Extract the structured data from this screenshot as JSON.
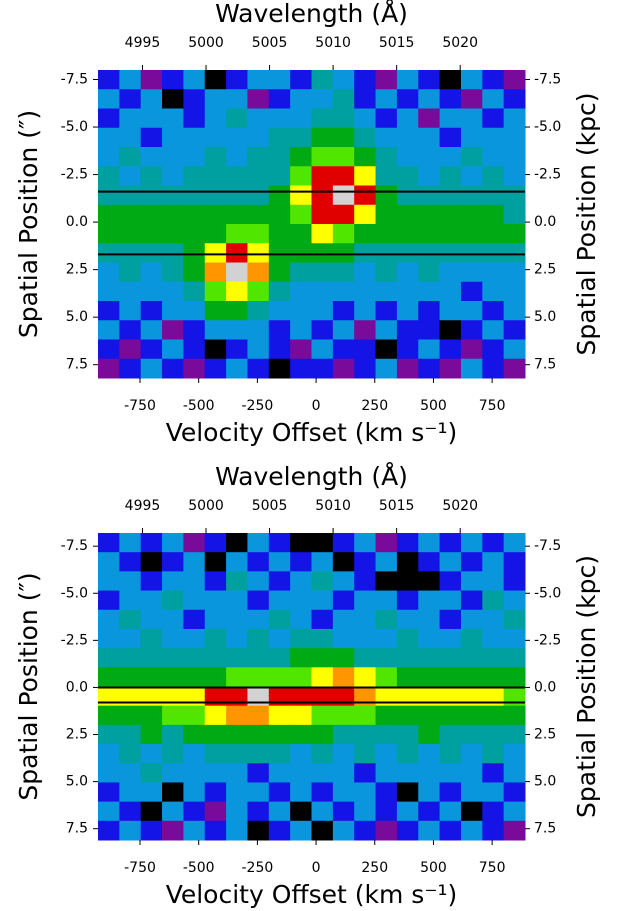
{
  "chart_data": [
    {
      "type": "heatmap",
      "top_axis_label": "Wavelength (Å)",
      "x_label": "Velocity Offset (km s⁻¹)",
      "y_label": "Spatial Position (″)",
      "y2_label": "Spatial Position (kpc)",
      "xlim": [
        -929,
        890
      ],
      "xticks": [
        -750,
        -500,
        -250,
        0,
        250,
        500,
        750
      ],
      "x2lim": [
        4991.5,
        5025.1
      ],
      "x2ticks": [
        4995,
        5000,
        5005,
        5010,
        5015,
        5020
      ],
      "ylim": [
        -8.0,
        8.2
      ],
      "y_inverted": true,
      "yticks": [
        -7.5,
        {
          "value": -5,
          "label": "-5.0"
        },
        -2.5,
        {
          "value": 0,
          "label": "0.0"
        },
        2.5,
        {
          "value": 5,
          "label": "5.0"
        },
        7.5
      ],
      "y2lim": [
        -8.0,
        8.2
      ],
      "y2ticks": [
        -7.5,
        {
          "value": -5,
          "label": "-5.0"
        },
        -2.5,
        {
          "value": 0,
          "label": "0.0"
        },
        2.5,
        {
          "value": 5,
          "label": "5.0"
        },
        7.5
      ],
      "hlines": [
        -1.6,
        1.7
      ],
      "hline_color": "#000000",
      "colormap": [
        "#000000",
        "#7a0a9a",
        "#1414e6",
        "#0a96dc",
        "#00a0a0",
        "#00aa14",
        "#50e600",
        "#ffff00",
        "#ff9600",
        "#e00000",
        "#d2d2d2"
      ],
      "z": [
        [
          2,
          3,
          1,
          2,
          3,
          0,
          2,
          3,
          3,
          2,
          4,
          3,
          2,
          1,
          3,
          2,
          0,
          3,
          2,
          1
        ],
        [
          3,
          2,
          3,
          0,
          2,
          3,
          3,
          1,
          2,
          3,
          3,
          4,
          2,
          3,
          2,
          3,
          2,
          1,
          3,
          2
        ],
        [
          2,
          3,
          3,
          3,
          2,
          3,
          4,
          3,
          3,
          3,
          4,
          4,
          3,
          2,
          3,
          1,
          3,
          3,
          2,
          3
        ],
        [
          3,
          3,
          2,
          3,
          3,
          3,
          3,
          3,
          4,
          4,
          5,
          5,
          4,
          3,
          3,
          3,
          2,
          3,
          3,
          3
        ],
        [
          3,
          4,
          3,
          3,
          3,
          4,
          3,
          4,
          4,
          5,
          6,
          6,
          5,
          4,
          3,
          3,
          3,
          4,
          3,
          3
        ],
        [
          4,
          3,
          4,
          3,
          4,
          4,
          4,
          4,
          4,
          6,
          9,
          9,
          7,
          4,
          4,
          3,
          4,
          3,
          4,
          3
        ],
        [
          4,
          4,
          4,
          4,
          4,
          4,
          4,
          4,
          5,
          7,
          9,
          10,
          9,
          5,
          4,
          4,
          4,
          4,
          4,
          4
        ],
        [
          5,
          5,
          5,
          5,
          5,
          5,
          5,
          5,
          5,
          6,
          9,
          9,
          7,
          5,
          5,
          5,
          5,
          5,
          5,
          4
        ],
        [
          5,
          5,
          5,
          5,
          5,
          5,
          6,
          6,
          5,
          5,
          7,
          6,
          5,
          5,
          5,
          5,
          5,
          5,
          5,
          5
        ],
        [
          4,
          4,
          4,
          4,
          5,
          7,
          9,
          7,
          5,
          5,
          5,
          5,
          4,
          4,
          4,
          4,
          4,
          4,
          4,
          4
        ],
        [
          3,
          4,
          3,
          4,
          5,
          8,
          10,
          8,
          5,
          4,
          4,
          4,
          3,
          4,
          3,
          4,
          3,
          3,
          3,
          3
        ],
        [
          3,
          3,
          3,
          3,
          4,
          6,
          7,
          6,
          4,
          3,
          3,
          3,
          3,
          3,
          3,
          3,
          3,
          2,
          3,
          3
        ],
        [
          2,
          3,
          2,
          3,
          3,
          5,
          5,
          4,
          3,
          3,
          3,
          2,
          3,
          2,
          3,
          2,
          3,
          3,
          2,
          3
        ],
        [
          3,
          2,
          3,
          1,
          2,
          3,
          3,
          3,
          2,
          3,
          2,
          3,
          1,
          3,
          2,
          2,
          0,
          2,
          3,
          2
        ],
        [
          2,
          1,
          2,
          3,
          2,
          0,
          2,
          3,
          2,
          1,
          3,
          2,
          2,
          0,
          2,
          3,
          2,
          1,
          2,
          3
        ],
        [
          1,
          2,
          3,
          2,
          1,
          2,
          3,
          2,
          0,
          2,
          2,
          1,
          2,
          3,
          1,
          2,
          1,
          3,
          2,
          1
        ]
      ]
    },
    {
      "type": "heatmap",
      "top_axis_label": "Wavelength (Å)",
      "x_label": "Velocity Offset (km s⁻¹)",
      "y_label": "Spatial Position (″)",
      "y2_label": "Spatial Position (kpc)",
      "xlim": [
        -929,
        890
      ],
      "xticks": [
        -750,
        -500,
        -250,
        0,
        250,
        500,
        750
      ],
      "x2lim": [
        4991.5,
        5025.1
      ],
      "x2ticks": [
        4995,
        5000,
        5005,
        5010,
        5015,
        5020
      ],
      "ylim": [
        -8.2,
        8.1
      ],
      "y_inverted": true,
      "yticks": [
        -7.5,
        {
          "value": -5,
          "label": "-5.0"
        },
        -2.5,
        {
          "value": 0,
          "label": "0.0"
        },
        2.5,
        {
          "value": 5,
          "label": "5.0"
        },
        7.5
      ],
      "y2lim": [
        -8.2,
        8.1
      ],
      "y2ticks": [
        -7.5,
        {
          "value": -5,
          "label": "-5.0"
        },
        -2.5,
        {
          "value": 0,
          "label": "0.0"
        },
        2.5,
        {
          "value": 5,
          "label": "5.0"
        },
        7.5
      ],
      "hlines": [
        0.0,
        0.8
      ],
      "hline_color": "#000000",
      "colormap": [
        "#000000",
        "#7a0a9a",
        "#1414e6",
        "#0a96dc",
        "#00a0a0",
        "#00aa14",
        "#50e600",
        "#ffff00",
        "#ff9600",
        "#e00000",
        "#d2d2d2"
      ],
      "z": [
        [
          2,
          3,
          2,
          3,
          1,
          2,
          0,
          3,
          2,
          0,
          0,
          2,
          3,
          1,
          2,
          3,
          2,
          3,
          2,
          3
        ],
        [
          3,
          2,
          0,
          2,
          3,
          0,
          3,
          2,
          3,
          2,
          3,
          0,
          2,
          3,
          0,
          2,
          3,
          2,
          3,
          2
        ],
        [
          3,
          3,
          2,
          3,
          3,
          2,
          4,
          3,
          2,
          3,
          4,
          3,
          2,
          0,
          0,
          0,
          2,
          3,
          3,
          2
        ],
        [
          2,
          3,
          3,
          4,
          3,
          3,
          3,
          2,
          3,
          3,
          3,
          2,
          3,
          3,
          2,
          3,
          3,
          2,
          4,
          3
        ],
        [
          3,
          4,
          3,
          3,
          2,
          3,
          3,
          3,
          4,
          3,
          2,
          3,
          3,
          4,
          3,
          3,
          2,
          3,
          3,
          4
        ],
        [
          3,
          3,
          4,
          3,
          3,
          4,
          3,
          4,
          3,
          4,
          4,
          3,
          3,
          3,
          4,
          3,
          3,
          4,
          3,
          3
        ],
        [
          4,
          4,
          4,
          4,
          4,
          4,
          4,
          4,
          4,
          5,
          5,
          5,
          4,
          4,
          4,
          4,
          4,
          4,
          4,
          4
        ],
        [
          5,
          5,
          5,
          5,
          5,
          5,
          6,
          6,
          6,
          6,
          7,
          8,
          7,
          6,
          5,
          5,
          5,
          5,
          5,
          5
        ],
        [
          7,
          7,
          7,
          7,
          7,
          9,
          9,
          10,
          9,
          9,
          9,
          9,
          8,
          7,
          7,
          7,
          7,
          7,
          7,
          6
        ],
        [
          5,
          5,
          5,
          6,
          6,
          7,
          8,
          8,
          7,
          7,
          6,
          6,
          6,
          5,
          5,
          5,
          5,
          5,
          5,
          5
        ],
        [
          4,
          4,
          5,
          4,
          5,
          5,
          5,
          5,
          5,
          5,
          5,
          4,
          4,
          4,
          4,
          5,
          4,
          4,
          4,
          4
        ],
        [
          3,
          4,
          3,
          4,
          3,
          4,
          4,
          4,
          4,
          3,
          4,
          3,
          4,
          3,
          4,
          3,
          4,
          3,
          4,
          3
        ],
        [
          3,
          3,
          4,
          3,
          3,
          3,
          3,
          2,
          3,
          3,
          3,
          3,
          2,
          3,
          3,
          3,
          3,
          3,
          2,
          3
        ],
        [
          2,
          3,
          3,
          0,
          3,
          2,
          3,
          3,
          2,
          3,
          2,
          3,
          3,
          2,
          0,
          3,
          2,
          3,
          3,
          2
        ],
        [
          3,
          2,
          0,
          3,
          2,
          1,
          3,
          2,
          3,
          0,
          3,
          2,
          3,
          2,
          3,
          2,
          3,
          0,
          2,
          3
        ],
        [
          2,
          3,
          2,
          1,
          3,
          2,
          3,
          0,
          2,
          3,
          0,
          3,
          2,
          1,
          2,
          3,
          2,
          3,
          2,
          1
        ]
      ]
    }
  ]
}
